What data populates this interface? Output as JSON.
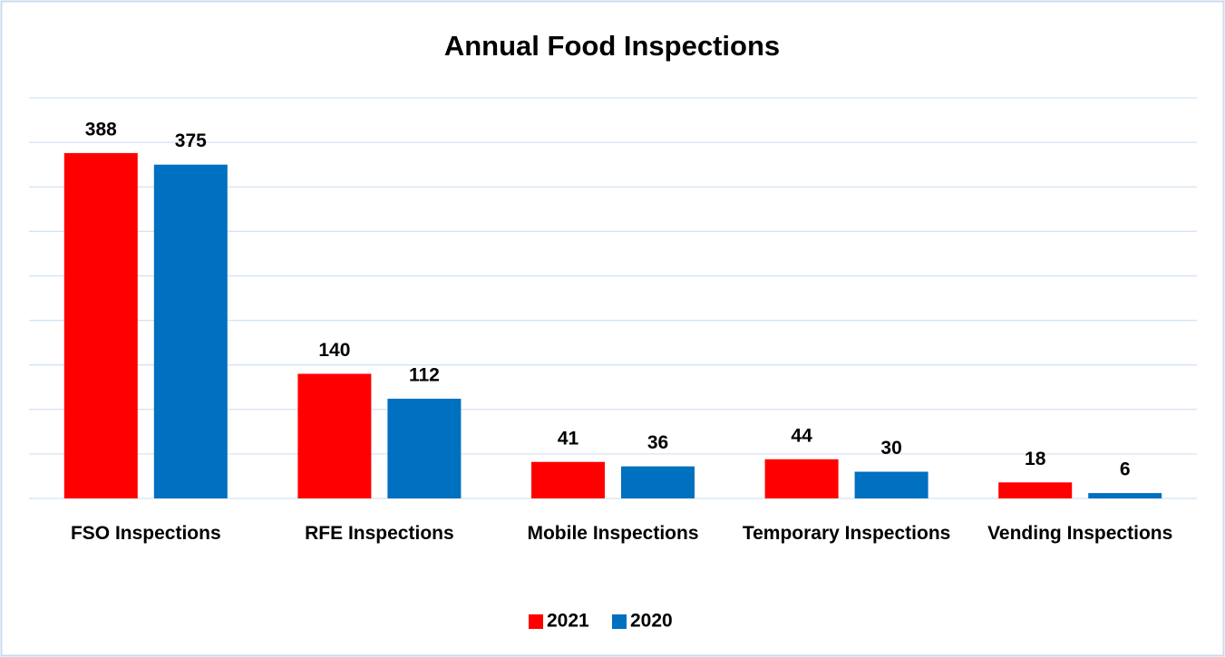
{
  "chart_data": {
    "type": "bar",
    "title": "Annual Food Inspections",
    "categories": [
      "FSO Inspections",
      "RFE Inspections",
      "Mobile Inspections",
      "Temporary Inspections",
      "Vending Inspections"
    ],
    "series": [
      {
        "name": "2021",
        "color": "#ff0000",
        "values": [
          388,
          140,
          41,
          44,
          18
        ]
      },
      {
        "name": "2020",
        "color": "#0070c0",
        "values": [
          375,
          112,
          36,
          30,
          6
        ]
      }
    ],
    "ylim": [
      0,
      450
    ],
    "yticks": [
      0,
      50,
      100,
      150,
      200,
      250,
      300,
      350,
      400,
      450
    ],
    "grid": true,
    "legend": "bottom"
  }
}
